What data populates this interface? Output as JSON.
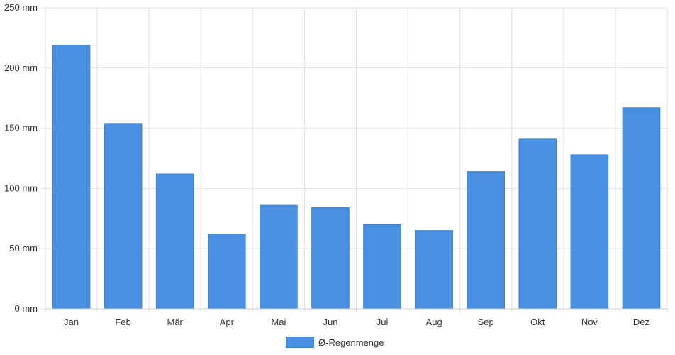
{
  "chart_data": {
    "type": "bar",
    "categories": [
      "Jan",
      "Feb",
      "Mär",
      "Apr",
      "Mai",
      "Jun",
      "Jul",
      "Aug",
      "Sep",
      "Okt",
      "Nov",
      "Dez"
    ],
    "series": [
      {
        "name": "Ø-Regenmenge",
        "values": [
          219,
          154,
          112,
          62,
          86,
          84,
          70,
          65,
          114,
          141,
          128,
          167
        ],
        "color": "#4a90e2"
      }
    ],
    "unit": "mm",
    "ylim": [
      0,
      250
    ],
    "yticks": [
      "0 mm",
      "50 mm",
      "100 mm",
      "150 mm",
      "200 mm",
      "250 mm"
    ],
    "grid": true,
    "legend_position": "bottom-center"
  }
}
